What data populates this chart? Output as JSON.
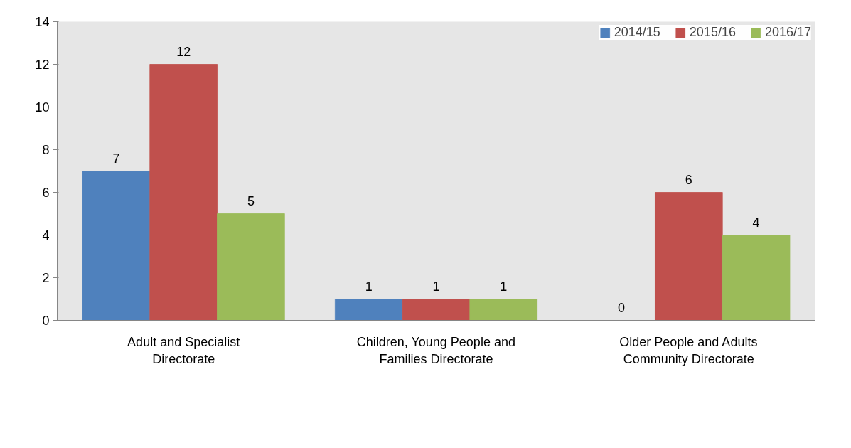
{
  "chart_data": {
    "type": "bar",
    "categories": [
      "Adult and Specialist Directorate",
      "Children, Young People and Families Directorate",
      "Older People and Adults Community Directorate"
    ],
    "series": [
      {
        "name": "2014/15",
        "color": "#4f81bd",
        "values": [
          7,
          1,
          0
        ]
      },
      {
        "name": "2015/16",
        "color": "#c0504d",
        "values": [
          12,
          1,
          6
        ]
      },
      {
        "name": "2016/17",
        "color": "#9bbb59",
        "values": [
          5,
          1,
          4
        ]
      }
    ],
    "ylim": [
      0,
      14
    ],
    "yticks": [
      0,
      2,
      4,
      6,
      8,
      10,
      12,
      14
    ],
    "grid": false,
    "legend": "top right",
    "data_labels": true
  }
}
